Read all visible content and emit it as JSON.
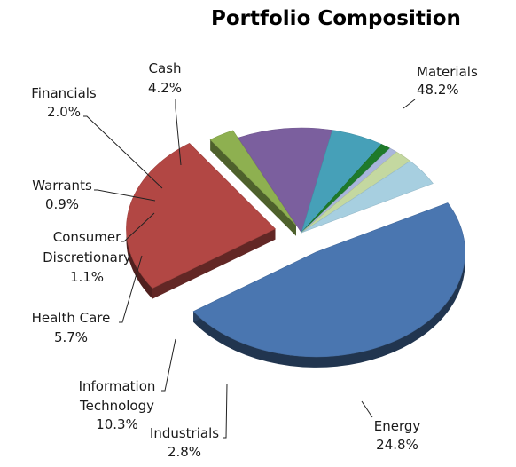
{
  "chart_data": {
    "type": "pie",
    "title": "Portfolio Composition",
    "slices": [
      {
        "name": "Materials",
        "value": 48.2,
        "label": "48.2%",
        "color": "#4a76b0"
      },
      {
        "name": "Energy",
        "value": 24.8,
        "label": "24.8%",
        "color": "#b24744"
      },
      {
        "name": "Industrials",
        "value": 2.8,
        "label": "2.8%",
        "color": "#8eb050"
      },
      {
        "name": "Information Technology",
        "value": 10.3,
        "label": "10.3%",
        "color": "#7b5f9e"
      },
      {
        "name": "Health Care",
        "value": 5.7,
        "label": "5.7%",
        "color": "#46a0b8"
      },
      {
        "name": "Consumer Discretionary",
        "value": 1.1,
        "label": "1.1%",
        "color": "#1e7a2a"
      },
      {
        "name": "Warrants",
        "value": 0.9,
        "label": "0.9%",
        "color": "#a9b6dc"
      },
      {
        "name": "Financials",
        "value": 2.0,
        "label": "2.0%",
        "color": "#c4d8a0"
      },
      {
        "name": "Cash",
        "value": 4.2,
        "label": "4.2%",
        "color": "#a7cfe0"
      }
    ],
    "legend": "none",
    "style": "3d-exploded"
  }
}
